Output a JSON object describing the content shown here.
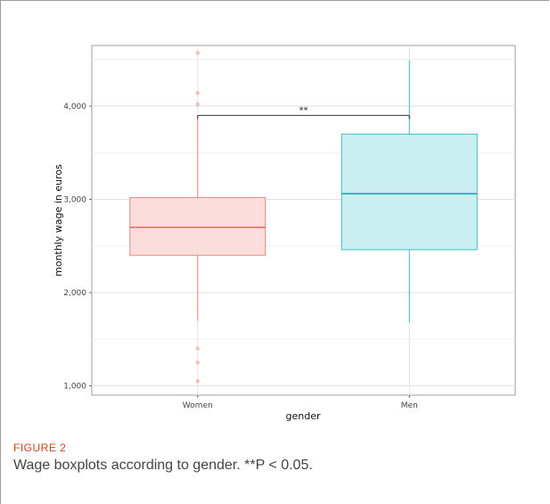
{
  "figure": {
    "label": "FIGURE 2",
    "caption": "Wage boxplots according to gender. **P < 0.05."
  },
  "chart_data": {
    "type": "box",
    "title": "",
    "xlabel": "gender",
    "ylabel": "monthly wage in euros",
    "categories": [
      "Women",
      "Men"
    ],
    "ylim": [
      900,
      4650
    ],
    "yticks": [
      1000,
      2000,
      3000,
      4000
    ],
    "ytick_labels": [
      "1,000",
      "2,000",
      "3,000",
      "4,000"
    ],
    "grid": true,
    "boxes": [
      {
        "name": "Women",
        "q1": 2400,
        "median": 2700,
        "q3": 3020,
        "whisker_low": 1700,
        "whisker_high": 3900,
        "outliers": [
          4570,
          4140,
          4020,
          1400,
          1250,
          1050
        ],
        "stroke": "#e8877d",
        "fill": "#fbdedb",
        "median_color": "#e0705f"
      },
      {
        "name": "Men",
        "q1": 2460,
        "median": 3060,
        "q3": 3700,
        "whisker_low": 1680,
        "whisker_high": 4490,
        "outliers": [],
        "stroke": "#3fbcc6",
        "fill": "#cbeef1",
        "median_color": "#1fa9b5"
      }
    ],
    "significance": {
      "label": "**",
      "y": 3900,
      "from": "Women",
      "to": "Men"
    }
  }
}
